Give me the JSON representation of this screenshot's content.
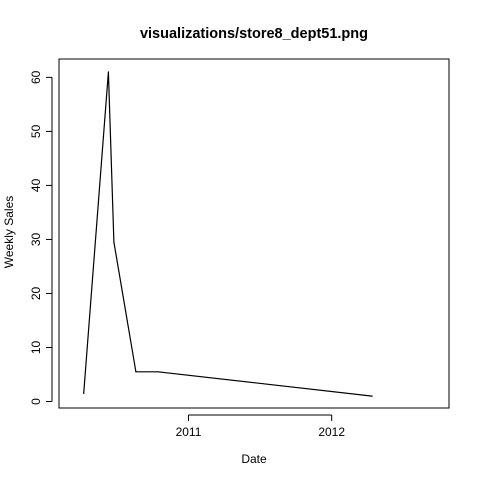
{
  "chart_data": {
    "type": "line",
    "title": "visualizations/store8_dept51.png",
    "xlabel": "Date",
    "ylabel": "Weekly Sales",
    "x_axis_type": "date",
    "xlim": [
      "2010-02-05",
      "2012-10-26"
    ],
    "ylim": [
      -1.2,
      63.4
    ],
    "x_ticks": [
      {
        "value": "2011-01-01",
        "label": "2011"
      },
      {
        "value": "2012-01-01",
        "label": "2012"
      }
    ],
    "y_ticks": [
      {
        "value": 0,
        "label": "0"
      },
      {
        "value": 10,
        "label": "10"
      },
      {
        "value": 20,
        "label": "20"
      },
      {
        "value": 30,
        "label": "30"
      },
      {
        "value": 40,
        "label": "40"
      },
      {
        "value": 50,
        "label": "50"
      },
      {
        "value": 60,
        "label": "60"
      }
    ],
    "grid": false,
    "legend": "none",
    "line_color": "#000000",
    "series": [
      {
        "x": [
          "2010-04-09",
          "2010-06-11",
          "2010-06-25",
          "2010-08-20",
          "2010-10-15",
          "2012-04-13"
        ],
        "y": [
          1.5,
          61.0,
          29.5,
          5.5,
          5.5,
          1.0
        ]
      }
    ]
  }
}
